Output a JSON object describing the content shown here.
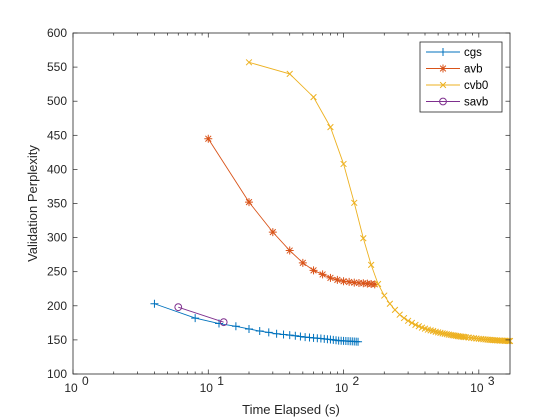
{
  "chart_data": {
    "type": "line",
    "title": "",
    "xlabel": "Time Elapsed (s)",
    "ylabel": "Validation Perplexity",
    "xscale": "log",
    "xlim": [
      1,
      1700
    ],
    "ylim": [
      100,
      600
    ],
    "x_ticks": [
      1,
      10,
      100,
      1000
    ],
    "x_tick_labels": [
      "10",
      "10",
      "10",
      "10"
    ],
    "x_tick_exponents": [
      "0",
      "1",
      "2",
      "3"
    ],
    "y_ticks": [
      100,
      150,
      200,
      250,
      300,
      350,
      400,
      450,
      500,
      550,
      600
    ],
    "y_tick_labels": [
      "100",
      "150",
      "200",
      "250",
      "300",
      "350",
      "400",
      "450",
      "500",
      "550",
      "600"
    ],
    "grid": false,
    "legend_position": "top-right",
    "series": [
      {
        "name": "cgs",
        "color": "#0072BD",
        "marker": "plus",
        "x": [
          4,
          8,
          12,
          16,
          20,
          24,
          28,
          32,
          36,
          40,
          44,
          48,
          52,
          56,
          60,
          64,
          68,
          72,
          76,
          80,
          84,
          88,
          92,
          96,
          100,
          104,
          108,
          112,
          116,
          120,
          124,
          128
        ],
        "y": [
          203,
          182,
          174,
          170,
          166,
          163,
          161,
          159,
          158,
          157,
          156,
          155,
          154,
          153.5,
          153,
          152.5,
          152,
          151.5,
          151,
          150.5,
          150,
          149.5,
          149,
          148.8,
          148.6,
          148.4,
          148.2,
          148,
          147.8,
          147.6,
          147.4,
          147.2
        ]
      },
      {
        "name": "avb",
        "color": "#D95319",
        "marker": "star",
        "x": [
          10,
          20,
          30,
          40,
          50,
          60,
          70,
          80,
          90,
          100,
          110,
          120,
          130,
          140,
          150,
          160,
          170
        ],
        "y": [
          445,
          352,
          308,
          281,
          263,
          252,
          246,
          241,
          238,
          236,
          235,
          234,
          233.5,
          233,
          232.5,
          232,
          231.5
        ]
      },
      {
        "name": "cvb0",
        "color": "#EDB120",
        "marker": "x",
        "x": [
          20,
          40,
          60,
          80,
          100,
          120,
          140,
          160,
          180,
          200,
          220,
          240,
          260,
          280,
          300,
          320,
          340,
          360,
          380,
          400,
          420,
          440,
          460,
          480,
          500,
          520,
          540,
          560,
          580,
          600,
          620,
          640,
          660,
          680,
          700,
          720,
          740,
          760,
          780,
          800,
          840,
          880,
          920,
          960,
          1000,
          1040,
          1080,
          1120,
          1160,
          1200,
          1240,
          1280,
          1320,
          1360,
          1400,
          1440,
          1480,
          1520,
          1560,
          1600,
          1640,
          1680,
          1700
        ],
        "y": [
          557,
          540,
          506,
          462,
          408,
          351,
          299,
          260,
          232,
          215,
          203,
          194,
          187,
          182,
          178,
          175,
          172,
          170,
          168,
          166.5,
          165,
          164,
          163,
          162,
          161,
          160.3,
          159.6,
          159,
          158.4,
          157.8,
          157.3,
          156.8,
          156.4,
          156,
          155.6,
          155.2,
          154.9,
          154.6,
          154.3,
          154,
          153.5,
          153,
          152.5,
          152,
          151.6,
          151.3,
          151,
          150.7,
          150.4,
          150.1,
          149.9,
          149.7,
          149.5,
          149.3,
          149.1,
          149,
          148.9,
          148.8,
          148.7,
          148.6,
          148.5,
          148.4,
          148.4
        ]
      },
      {
        "name": "savb",
        "color": "#7E2F8E",
        "marker": "circle",
        "x": [
          6,
          13
        ],
        "y": [
          198,
          176
        ]
      }
    ]
  }
}
